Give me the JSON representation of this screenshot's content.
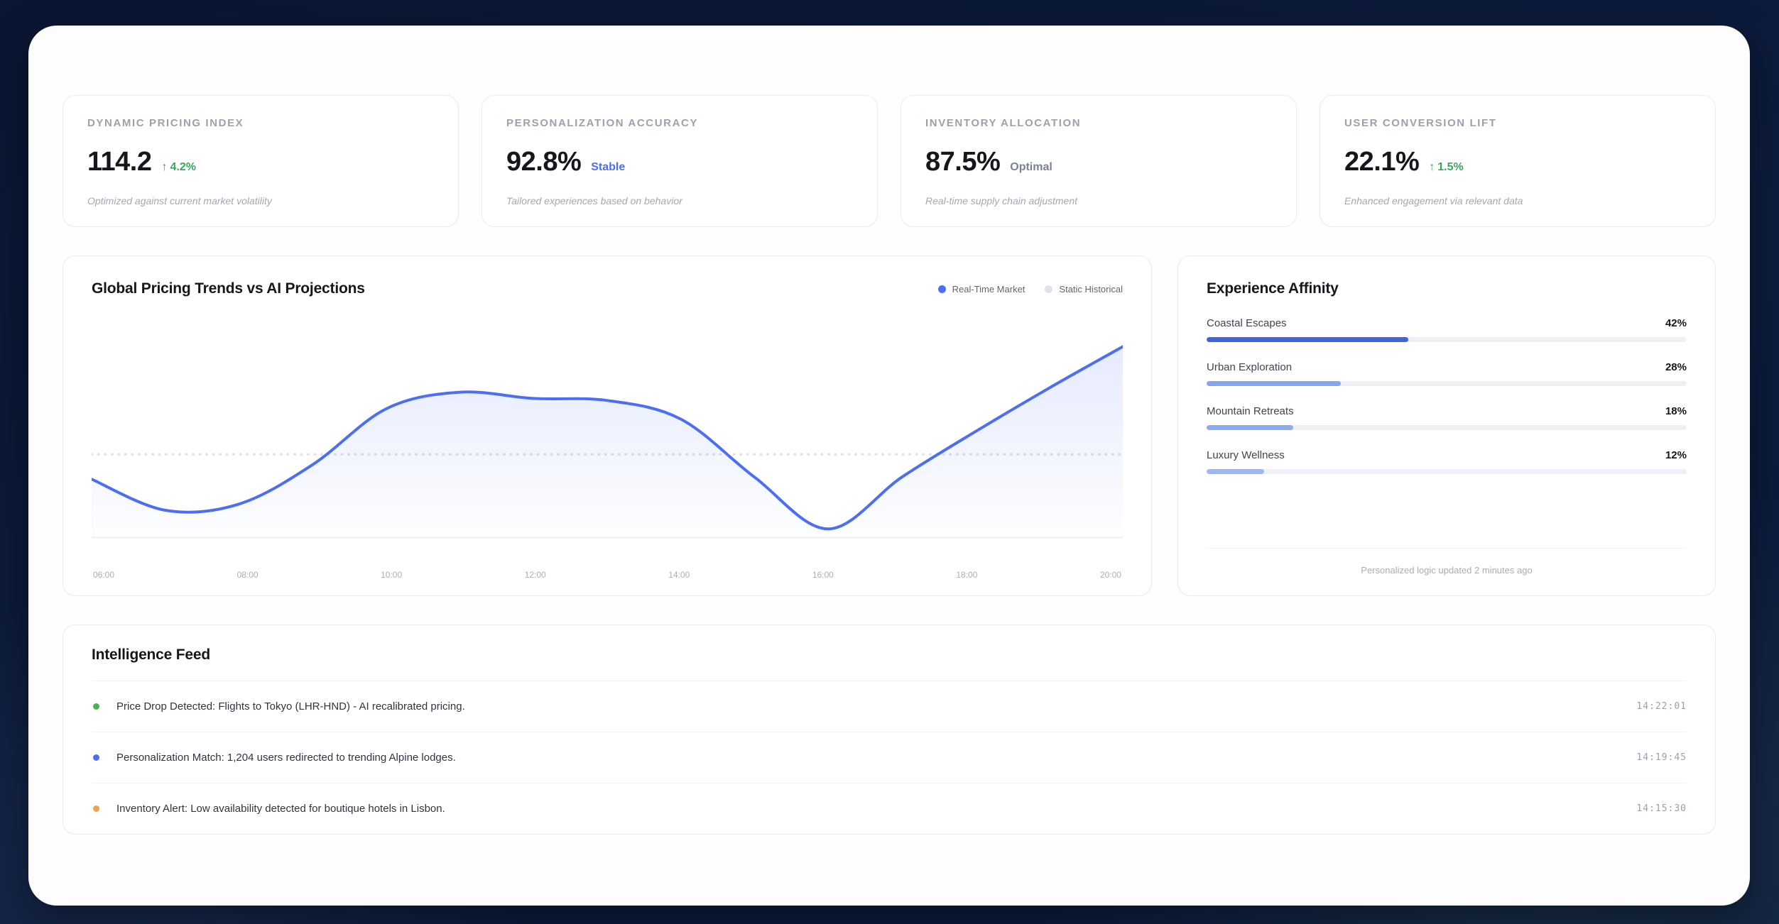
{
  "colors": {
    "accent_blue": "#4c6ef5",
    "positive_green": "#3ba55d",
    "neutral_gray": "#7a8291",
    "static_gray": "#dfe2e8"
  },
  "stat_cards": [
    {
      "label": "DYNAMIC PRICING INDEX",
      "value": "114.2",
      "delta_icon": "↑",
      "delta_text": "4.2%",
      "delta_type": "positive",
      "note": "Optimized against current market volatility"
    },
    {
      "label": "PERSONALIZATION ACCURACY",
      "value": "92.8%",
      "delta_icon": "",
      "delta_text": "Stable",
      "delta_type": "info",
      "note": "Tailored experiences based on behavior"
    },
    {
      "label": "INVENTORY ALLOCATION",
      "value": "87.5%",
      "delta_icon": "",
      "delta_text": "Optimal",
      "delta_type": "neutral",
      "note": "Real-time supply chain adjustment"
    },
    {
      "label": "USER CONVERSION LIFT",
      "value": "22.1%",
      "delta_icon": "↑",
      "delta_text": "1.5%",
      "delta_type": "positive",
      "note": "Enhanced engagement via relevant data"
    }
  ],
  "chart_data": {
    "type": "line",
    "title": "Global Pricing Trends vs AI Projections",
    "x": [
      "06:00",
      "07:00",
      "08:00",
      "09:00",
      "10:00",
      "11:00",
      "12:00",
      "13:00",
      "14:00",
      "15:00",
      "16:00",
      "17:00",
      "18:00",
      "19:00",
      "20:00"
    ],
    "x_labels": [
      "06:00",
      "08:00",
      "10:00",
      "12:00",
      "14:00",
      "16:00",
      "18:00",
      "20:00"
    ],
    "ylim": [
      0,
      100
    ],
    "grid": false,
    "legend_position": "top-right",
    "series": [
      {
        "name": "Real-Time Market",
        "color": "#4c6ef5",
        "style": "smooth-area",
        "values": [
          28,
          13,
          16,
          35,
          62,
          70,
          67,
          66,
          57,
          29,
          4,
          29,
          51,
          72,
          92
        ]
      },
      {
        "name": "Static Historical",
        "color": "#dfe2e8",
        "style": "dotted-flat",
        "values": [
          40,
          40,
          40,
          40,
          40,
          40,
          40,
          40,
          40,
          40,
          40,
          40,
          40,
          40,
          40
        ]
      }
    ]
  },
  "affinity": {
    "title": "Experience Affinity",
    "items": [
      {
        "label": "Coastal Escapes",
        "value": 42,
        "display": "42%",
        "color": "#3e63dd"
      },
      {
        "label": "Urban Exploration",
        "value": 28,
        "display": "28%",
        "color": "#85a6ef"
      },
      {
        "label": "Mountain Retreats",
        "value": 18,
        "display": "18%",
        "color": "#8babf0"
      },
      {
        "label": "Luxury Wellness",
        "value": 12,
        "display": "12%",
        "color": "#9cb7f3"
      }
    ],
    "footer_note": "Personalized logic updated 2 minutes ago"
  },
  "feed": {
    "title": "Intelligence Feed",
    "items": [
      {
        "dot_color": "#4caf50",
        "message": "Price Drop Detected: Flights to Tokyo (LHR-HND) - AI recalibrated pricing.",
        "timestamp": "14:22:01"
      },
      {
        "dot_color": "#4c6ef5",
        "message": "Personalization Match: 1,204 users redirected to trending Alpine lodges.",
        "timestamp": "14:19:45"
      },
      {
        "dot_color": "#f0a24b",
        "message": "Inventory Alert: Low availability detected for boutique hotels in Lisbon.",
        "timestamp": "14:15:30"
      }
    ]
  }
}
